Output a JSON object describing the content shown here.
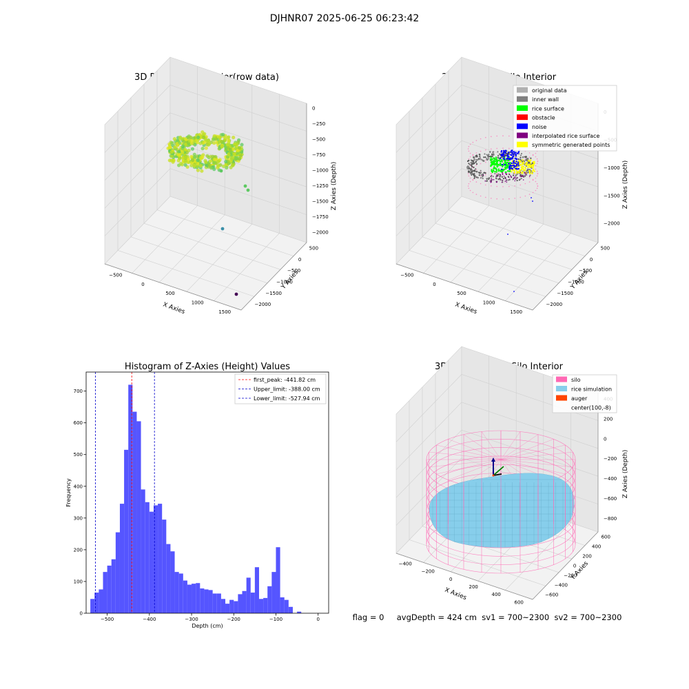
{
  "suptitle": "DJHNR07 2025-06-25 06:23:42",
  "status_line": "flag = 0     avgDepth = 424 cm  sv1 = 700~2300  sv2 = 700~2300",
  "colors": {
    "hist_bar": "#5555ff",
    "peak_line": "#ff0000",
    "limit_line": "#0000cc",
    "silo": "#ff69b4",
    "rice_sim": "#87ceeb",
    "auger": "#ff4500",
    "original": "#b0b0b0",
    "inner_wall": "#808080",
    "rice_surface": "#00ff00",
    "obstacle": "#ff0000",
    "noise": "#0000ff",
    "interpolated": "#800080",
    "symmetric": "#ffff00"
  },
  "chart_data": [
    {
      "type": "scatter3d",
      "title": "3D Plot of Silo Interior(row data)",
      "xlabel": "X Axies",
      "ylabel": "Y Axies",
      "zlabel": "Z Axies (Depth)",
      "x_ticks": [
        "−500",
        "0",
        "500",
        "1000",
        "1500"
      ],
      "y_ticks": [
        "500",
        "0",
        "−500",
        "−1000",
        "−1500",
        "−2000"
      ],
      "z_ticks": [
        "0",
        "−250",
        "−500",
        "−750",
        "−1000",
        "−1250",
        "−1500",
        "−1750",
        "−2000"
      ]
    },
    {
      "type": "scatter3d",
      "title": "3D classify of Silo Interior",
      "xlabel": "X Axies",
      "ylabel": "Y Axies",
      "zlabel": "Z Axies (Depth)",
      "x_ticks": [
        "−500",
        "0",
        "500",
        "1000",
        "1500"
      ],
      "y_ticks": [
        "500",
        "0",
        "−500",
        "−1000",
        "−1500",
        "−2000"
      ],
      "z_ticks": [
        "0",
        "−500",
        "−1000",
        "−1500",
        "−2000"
      ],
      "legend": [
        {
          "label": "original data",
          "color": "#b0b0b0"
        },
        {
          "label": "inner wall",
          "color": "#808080"
        },
        {
          "label": "rice surface",
          "color": "#00ff00"
        },
        {
          "label": "obstacle",
          "color": "#ff0000"
        },
        {
          "label": "noise",
          "color": "#0000ff"
        },
        {
          "label": "interpolated rice surface",
          "color": "#800080"
        },
        {
          "label": "symmetric generated points",
          "color": "#ffff00"
        }
      ],
      "legend_position": "top-right"
    },
    {
      "type": "bar",
      "title": "Histogram of Z-Axies (Height) Values",
      "xlabel": "Depth (cm)",
      "ylabel": "Frequency",
      "xlim": [
        -550,
        25
      ],
      "ylim": [
        0,
        760
      ],
      "x_ticks": [
        -500,
        -400,
        -300,
        -200,
        -100,
        0
      ],
      "y_ticks": [
        0,
        100,
        200,
        300,
        400,
        500,
        600,
        700
      ],
      "bin_start": -540,
      "bin_width": 10,
      "values": [
        45,
        65,
        75,
        130,
        150,
        170,
        255,
        345,
        515,
        720,
        635,
        605,
        390,
        350,
        320,
        340,
        345,
        295,
        218,
        195,
        130,
        125,
        103,
        90,
        93,
        95,
        78,
        75,
        73,
        62,
        62,
        45,
        30,
        42,
        38,
        60,
        70,
        112,
        65,
        145,
        45,
        48,
        85,
        130,
        208,
        50,
        42,
        20,
        0,
        5
      ],
      "vlines": [
        {
          "x": -441.82,
          "label": "first_peak: -441.82 cm",
          "color": "#ff0000"
        },
        {
          "x": -388.0,
          "label": "Upper_limit: -388.00 cm",
          "color": "#0000cc"
        },
        {
          "x": -527.94,
          "label": "Lower_limit: -527.94 cm",
          "color": "#0000cc"
        }
      ],
      "legend_position": "top-right"
    },
    {
      "type": "surface3d",
      "title": "3D simulation of Silo Interior",
      "xlabel": "X Axies",
      "ylabel": "Y Axies",
      "zlabel": "Z Axies (Depth)",
      "x_ticks": [
        "−400",
        "−200",
        "0",
        "200",
        "400",
        "600"
      ],
      "y_ticks": [
        "600",
        "400",
        "200",
        "0",
        "−200",
        "−400",
        "−600"
      ],
      "z_ticks": [
        "400",
        "200",
        "0",
        "−200",
        "−400",
        "−600",
        "−800"
      ],
      "legend": [
        {
          "label": "silo",
          "color": "#ff69b4"
        },
        {
          "label": "rice simulation",
          "color": "#87ceeb"
        },
        {
          "label": "auger",
          "color": "#ff4500"
        },
        {
          "label": "center(100,-8)",
          "color": ""
        }
      ],
      "legend_position": "top-right"
    }
  ]
}
